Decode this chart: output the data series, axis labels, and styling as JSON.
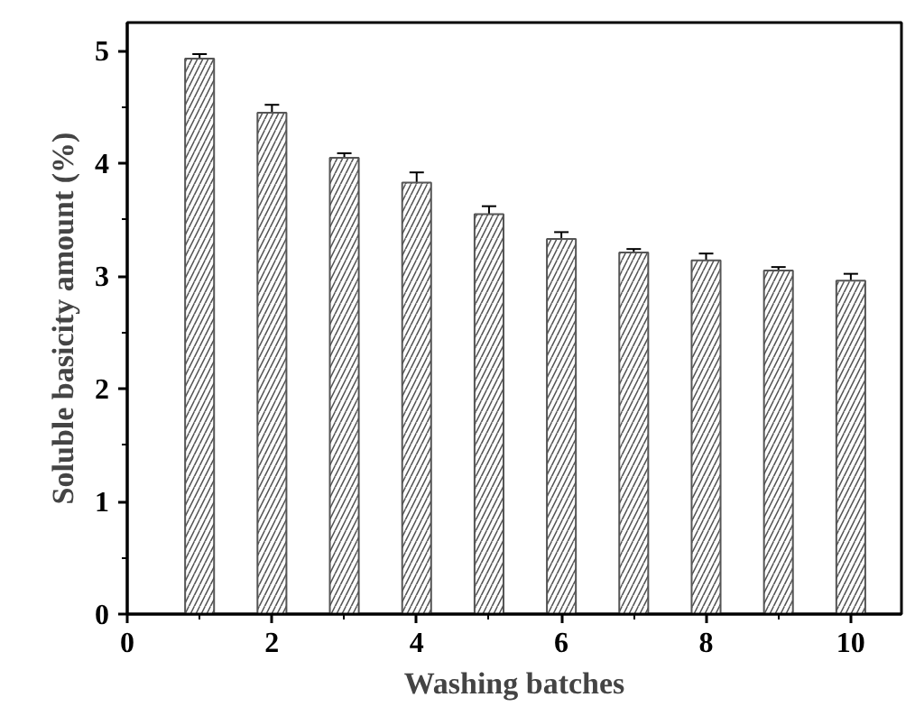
{
  "chart_data": {
    "type": "bar",
    "xlabel": "Washing batches",
    "ylabel": "Soluble basicity amount (%)",
    "x": [
      1,
      2,
      3,
      4,
      5,
      6,
      7,
      8,
      9,
      10
    ],
    "values": [
      4.93,
      4.45,
      4.05,
      3.83,
      3.55,
      3.33,
      3.21,
      3.14,
      3.05,
      2.96
    ],
    "errors": [
      0.04,
      0.07,
      0.04,
      0.09,
      0.07,
      0.06,
      0.03,
      0.06,
      0.03,
      0.06
    ],
    "color": "#555555",
    "xlim": [
      0,
      10.7
    ],
    "ylim": [
      0,
      5.25
    ],
    "xticks": [
      0,
      {
        "value": 1,
        "label": null
      },
      2,
      {
        "value": 3,
        "label": null
      },
      4,
      {
        "value": 5,
        "label": null
      },
      6,
      {
        "value": 7,
        "label": null
      },
      8,
      {
        "value": 9,
        "label": null
      },
      10
    ],
    "yticks": [
      0,
      {
        "value": 0.5,
        "label": null
      },
      1,
      {
        "value": 1.5,
        "label": null
      },
      2,
      {
        "value": 2.5,
        "label": null
      },
      3,
      {
        "value": 3.5,
        "label": null
      },
      4,
      {
        "value": 4.5,
        "label": null
      },
      5
    ],
    "grid": false
  }
}
